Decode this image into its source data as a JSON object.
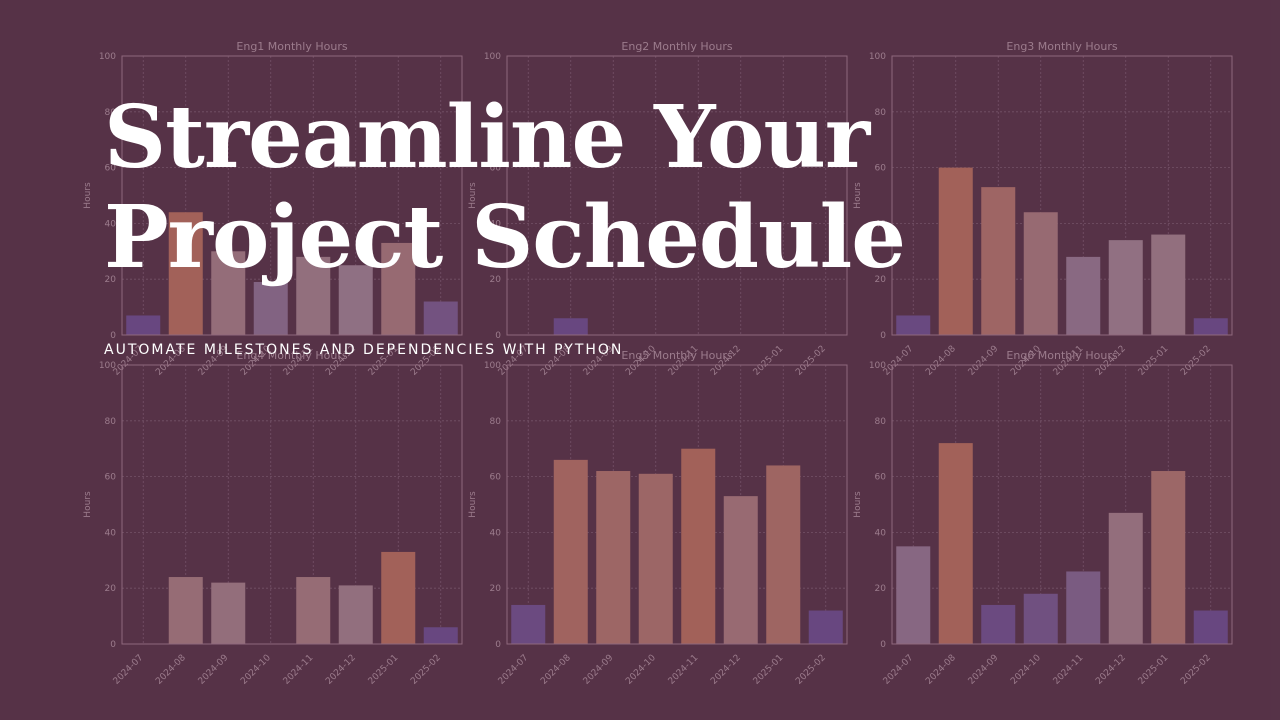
{
  "hero": {
    "title": "Streamline Your\nProject Schedule",
    "subtitle": "AUTOMATE MILESTONES AND DEPENDENCIES WITH PYTHON"
  },
  "colors": {
    "background": "#5e3a4f",
    "low": "#7a5aa6",
    "mid": "#b79aab",
    "high": "#d3826b",
    "axis": "#b58da0",
    "grid": "#8c6a80",
    "text": "#c8a9b8"
  },
  "chart_data": [
    {
      "type": "bar",
      "title": "Eng1 Monthly Hours",
      "categories": [
        "2024-07",
        "2024-08",
        "2024-09",
        "2024-10",
        "2024-11",
        "2024-12",
        "2025-01",
        "2025-02"
      ],
      "values": [
        7,
        44,
        30,
        19,
        28,
        25,
        33,
        12
      ],
      "ylabel": "Hours",
      "ylim": [
        0,
        100
      ],
      "yticks": [
        0,
        20,
        40,
        60,
        80,
        100
      ],
      "grid": true
    },
    {
      "type": "bar",
      "title": "Eng2 Monthly Hours",
      "categories": [
        "2024-07",
        "2024-08",
        "2024-09",
        "2024-10",
        "2024-11",
        "2024-12",
        "2025-01",
        "2025-02"
      ],
      "values": [
        0,
        6,
        0,
        0,
        0,
        0,
        0,
        0
      ],
      "ylabel": "Hours",
      "ylim": [
        0,
        100
      ],
      "yticks": [
        0,
        20,
        40,
        60,
        80,
        100
      ],
      "grid": true
    },
    {
      "type": "bar",
      "title": "Eng3 Monthly Hours",
      "categories": [
        "2024-07",
        "2024-08",
        "2024-09",
        "2024-10",
        "2024-11",
        "2024-12",
        "2025-01",
        "2025-02"
      ],
      "values": [
        7,
        60,
        53,
        44,
        28,
        34,
        36,
        6
      ],
      "ylabel": "Hours",
      "ylim": [
        0,
        100
      ],
      "yticks": [
        0,
        20,
        40,
        60,
        80,
        100
      ],
      "grid": true
    },
    {
      "type": "bar",
      "title": "Eng4 Monthly Hours",
      "categories": [
        "2024-07",
        "2024-08",
        "2024-09",
        "2024-10",
        "2024-11",
        "2024-12",
        "2025-01",
        "2025-02"
      ],
      "values": [
        0,
        24,
        22,
        0,
        24,
        21,
        33,
        6
      ],
      "ylabel": "Hours",
      "ylim": [
        0,
        100
      ],
      "yticks": [
        0,
        20,
        40,
        60,
        80,
        100
      ],
      "grid": true
    },
    {
      "type": "bar",
      "title": "Eng5 Monthly Hours",
      "categories": [
        "2024-07",
        "2024-08",
        "2024-09",
        "2024-10",
        "2024-11",
        "2024-12",
        "2025-01",
        "2025-02"
      ],
      "values": [
        14,
        66,
        62,
        61,
        70,
        53,
        64,
        12
      ],
      "ylabel": "Hours",
      "ylim": [
        0,
        100
      ],
      "yticks": [
        0,
        20,
        40,
        60,
        80,
        100
      ],
      "grid": true
    },
    {
      "type": "bar",
      "title": "Eng6 Monthly Hours",
      "categories": [
        "2024-07",
        "2024-08",
        "2024-09",
        "2024-10",
        "2024-11",
        "2024-12",
        "2025-01",
        "2025-02"
      ],
      "values": [
        35,
        72,
        14,
        18,
        26,
        47,
        62,
        12
      ],
      "ylabel": "Hours",
      "ylim": [
        0,
        100
      ],
      "yticks": [
        0,
        20,
        40,
        60,
        80,
        100
      ],
      "grid": true
    }
  ]
}
